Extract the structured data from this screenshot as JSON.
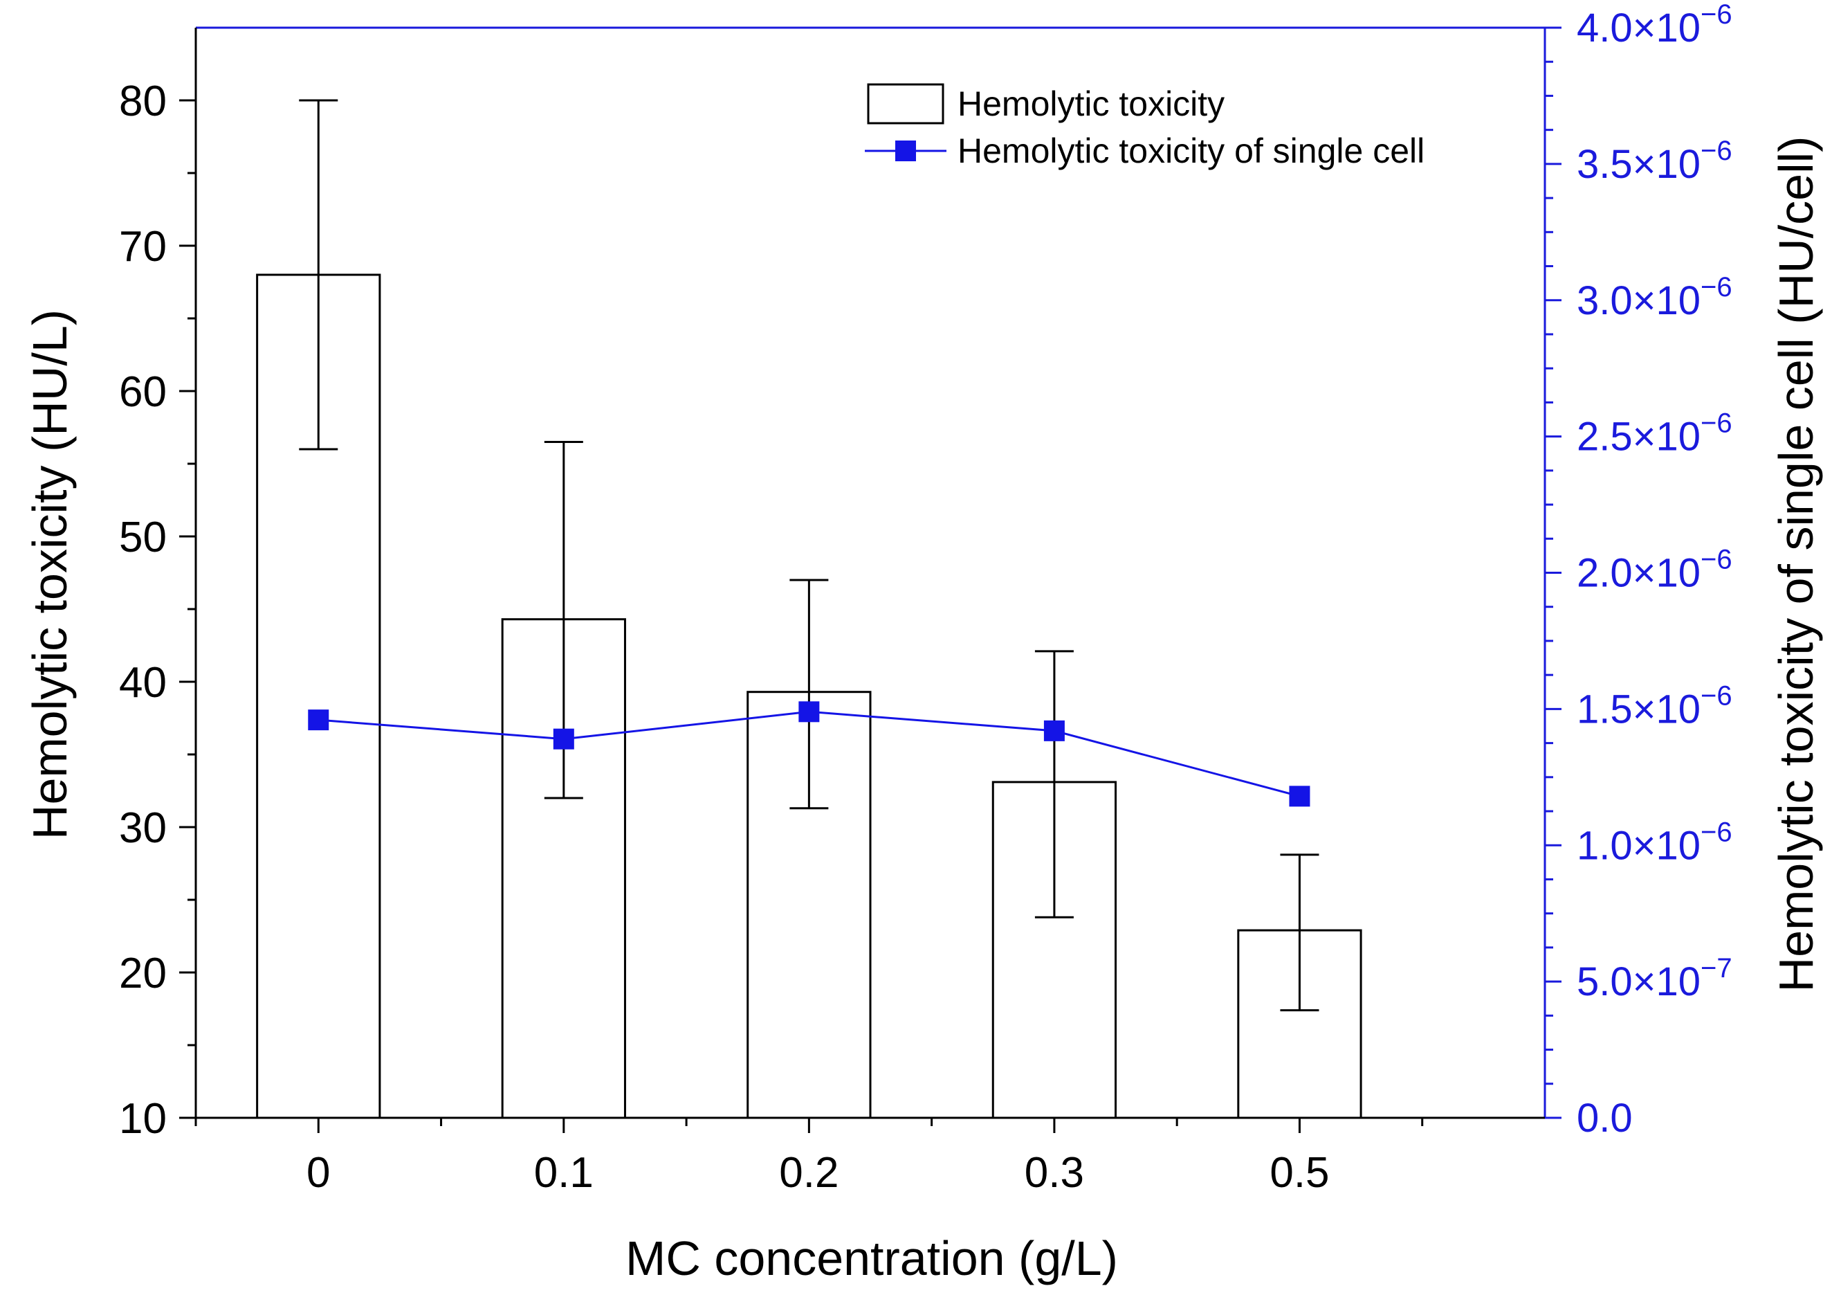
{
  "chart_data": {
    "type": "bar+line",
    "categories": [
      "0",
      "0.1",
      "0.2",
      "0.3",
      "0.5"
    ],
    "xlabel": "MC concentration (g/L)",
    "left_axis": {
      "label": "Hemolytic toxicity (HU/L)",
      "range": [
        10,
        85
      ],
      "ticks": [
        10,
        20,
        30,
        40,
        50,
        60,
        70,
        80
      ],
      "tick_labels": [
        "10",
        "20",
        "30",
        "40",
        "50",
        "60",
        "70",
        "80"
      ]
    },
    "right_axis": {
      "label": "Hemolytic toxicity of single cell (HU/cell)",
      "range": [
        0,
        4e-06
      ],
      "ticks": [
        0,
        5e-07,
        1e-06,
        1.5e-06,
        2e-06,
        2.5e-06,
        3e-06,
        3.5e-06,
        4e-06
      ],
      "tick_mantissa": [
        "0.0",
        "5.0×10",
        "1.0×10",
        "1.5×10",
        "2.0×10",
        "2.5×10",
        "3.0×10",
        "3.5×10",
        "4.0×10"
      ],
      "tick_exponent": [
        "",
        "−7",
        "−6",
        "−6",
        "−6",
        "−6",
        "−6",
        "−6",
        "−6"
      ],
      "color": "#1a1adc"
    },
    "series": [
      {
        "name": "Hemolytic toxicity",
        "type": "bar",
        "axis": "left",
        "values": [
          68.0,
          44.3,
          39.3,
          33.1,
          22.9
        ],
        "errors_low": [
          56.0,
          32.0,
          31.3,
          23.8,
          17.4
        ],
        "errors_high": [
          80.0,
          56.5,
          47.0,
          42.1,
          28.1
        ],
        "fill": "#ffffff",
        "stroke": "#000000"
      },
      {
        "name": "Hemolytic toxicity of single cell",
        "type": "line",
        "axis": "right",
        "values": [
          1.46e-06,
          1.39e-06,
          1.49e-06,
          1.42e-06,
          1.18e-06
        ],
        "color": "#1414e6"
      }
    ],
    "legend_position": "top-right",
    "grid": false
  }
}
